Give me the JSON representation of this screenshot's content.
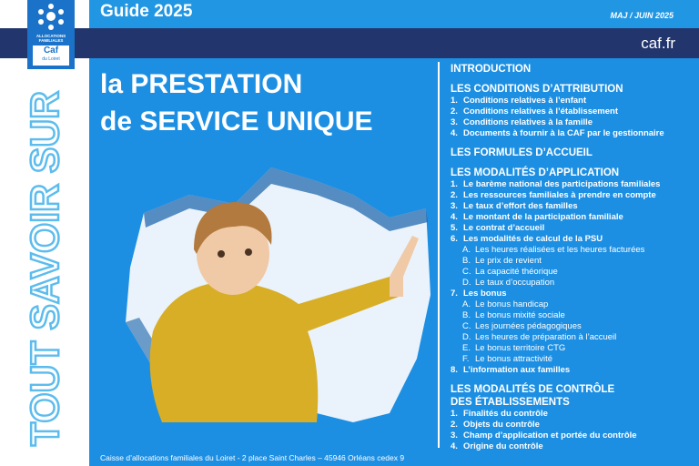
{
  "header": {
    "guide": "Guide 2025",
    "update": "MAJ / JUIN 2025",
    "site": "caf.fr",
    "logo": {
      "line1": "ALLOCATIONS",
      "line2": "FAMILIALES",
      "brand": "Caf",
      "region": "du Loiret"
    },
    "side_text": "TOUT SAVOIR SUR"
  },
  "title": {
    "line1": "la PRESTATION",
    "line2": "de SERVICE UNIQUE"
  },
  "toc": [
    {
      "heading": [
        "INTRODUCTION"
      ],
      "items": []
    },
    {
      "heading": [
        "LES CONDITIONS D’ATTRIBUTION"
      ],
      "items": [
        {
          "num": "1.",
          "text": "Conditions relatives à l’enfant"
        },
        {
          "num": "2.",
          "text": "Conditions relatives à l’établissement"
        },
        {
          "num": "3.",
          "text": "Conditions relatives à la famille"
        },
        {
          "num": "4.",
          "text": "Documents à fournir à la CAF par le gestionnaire"
        }
      ]
    },
    {
      "heading": [
        "LES FORMULES D’ACCUEIL"
      ],
      "items": []
    },
    {
      "heading": [
        "LES MODALITÉS D’APPLICATION"
      ],
      "items": [
        {
          "num": "1.",
          "text": "Le barème national des participations familiales"
        },
        {
          "num": "2.",
          "text": "Les ressources familiales à prendre en compte"
        },
        {
          "num": "3.",
          "text": "Le taux d’effort des familles"
        },
        {
          "num": "4.",
          "text": "Le montant de la participation familiale"
        },
        {
          "num": "5.",
          "text": "Le contrat d’accueil"
        },
        {
          "num": "6.",
          "text": "Les modalités de calcul de la PSU",
          "subitems": [
            {
              "num": "A.",
              "text": "Les heures réalisées et les heures facturées"
            },
            {
              "num": "B.",
              "text": "Le prix de revient"
            },
            {
              "num": "C.",
              "text": "La capacité théorique"
            },
            {
              "num": "D.",
              "text": "Le taux d’occupation"
            }
          ]
        },
        {
          "num": "7.",
          "text": "Les bonus",
          "subitems": [
            {
              "num": "A.",
              "text": "Le bonus handicap"
            },
            {
              "num": "B.",
              "text": "Le bonus mixité sociale"
            },
            {
              "num": "C.",
              "text": "Les journées pédagogiques"
            },
            {
              "num": "D.",
              "text": "Les heures de préparation à l’accueil"
            },
            {
              "num": "E.",
              "text": "Le bonus territoire CTG"
            },
            {
              "num": "F.",
              "text": "Le bonus attractivité"
            }
          ]
        },
        {
          "num": "8.",
          "text": "L’information aux familles"
        }
      ]
    },
    {
      "heading": [
        "LES MODALITÉS DE CONTRÔLE",
        "DES ÉTABLISSEMENTS"
      ],
      "items": [
        {
          "num": "1.",
          "text": "Finalités du contrôle"
        },
        {
          "num": "2.",
          "text": "Objets du contrôle"
        },
        {
          "num": "3.",
          "text": "Champ d’application et portée du contrôle"
        },
        {
          "num": "4.",
          "text": "Origine du contrôle"
        }
      ]
    }
  ],
  "footer": "Caisse d’allocations familiales du Loiret - 2 place Saint Charles – 45946 Orléans cedex 9"
}
